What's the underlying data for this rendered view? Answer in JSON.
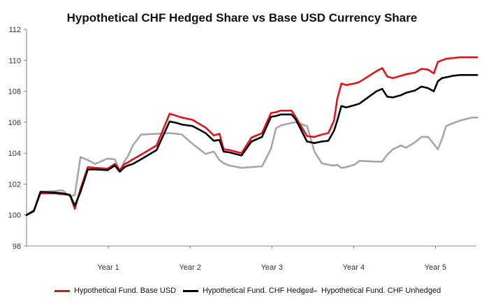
{
  "chart_data": {
    "type": "line",
    "title": "Hypothetical CHF Hedged Share vs Base USD Currency Share",
    "xlabel": "",
    "ylabel": "",
    "xlim": [
      0,
      5.5
    ],
    "ylim": [
      98,
      112
    ],
    "yticks": [
      98,
      100,
      102,
      104,
      106,
      108,
      110,
      112
    ],
    "xtick_labels": [
      {
        "x": 1,
        "label": "Year 1"
      },
      {
        "x": 2,
        "label": "Year 2"
      },
      {
        "x": 3,
        "label": "Year 3"
      },
      {
        "x": 4,
        "label": "Year 4"
      },
      {
        "x": 5,
        "label": "Year 5"
      }
    ],
    "grid": false,
    "legend_position": "bottom",
    "series": [
      {
        "name": "Hypothetical Fund. Base USD",
        "color": "#e3121a",
        "x": [
          0,
          0.09,
          0.17,
          0.34,
          0.44,
          0.53,
          0.59,
          0.66,
          0.75,
          0.84,
          0.99,
          1.08,
          1.14,
          1.2,
          1.24,
          1.3,
          1.4,
          1.59,
          1.75,
          1.84,
          1.9,
          2.03,
          2.19,
          2.29,
          2.36,
          2.41,
          2.48,
          2.63,
          2.75,
          2.88,
          2.99,
          3.05,
          3.11,
          3.24,
          3.29,
          3.43,
          3.52,
          3.61,
          3.69,
          3.76,
          3.8,
          3.85,
          3.91,
          4.01,
          4.07,
          4.28,
          4.35,
          4.41,
          4.48,
          4.58,
          4.64,
          4.75,
          4.83,
          4.91,
          4.98,
          5.03,
          5.08,
          5.13,
          5.22,
          5.3,
          5.37,
          5.45,
          5.51
        ],
        "y": [
          100.0,
          100.3,
          101.4,
          101.4,
          101.35,
          101.3,
          100.4,
          101.7,
          103.1,
          103.05,
          103.0,
          103.3,
          102.9,
          103.3,
          103.4,
          103.6,
          103.9,
          104.5,
          106.55,
          106.4,
          106.3,
          106.15,
          105.65,
          105.15,
          105.25,
          104.25,
          104.2,
          104.0,
          105.0,
          105.3,
          106.6,
          106.65,
          106.75,
          106.75,
          106.35,
          105.1,
          105.05,
          105.2,
          105.3,
          106.1,
          107.5,
          108.5,
          108.4,
          108.5,
          108.6,
          109.3,
          109.5,
          108.95,
          108.85,
          109.0,
          109.1,
          109.2,
          109.45,
          109.4,
          109.15,
          109.9,
          110.0,
          110.1,
          110.15,
          110.2,
          110.2,
          110.2,
          110.2
        ]
      },
      {
        "name": "Hypothetical Fund. CHF Hedged",
        "color": "#000000",
        "x": [
          0,
          0.09,
          0.17,
          0.34,
          0.44,
          0.53,
          0.59,
          0.66,
          0.75,
          0.84,
          0.99,
          1.08,
          1.14,
          1.2,
          1.24,
          1.3,
          1.4,
          1.59,
          1.75,
          1.84,
          1.9,
          2.03,
          2.19,
          2.29,
          2.36,
          2.41,
          2.48,
          2.63,
          2.75,
          2.88,
          2.99,
          3.05,
          3.11,
          3.24,
          3.29,
          3.43,
          3.52,
          3.61,
          3.69,
          3.76,
          3.8,
          3.85,
          3.91,
          4.01,
          4.07,
          4.28,
          4.35,
          4.41,
          4.48,
          4.58,
          4.64,
          4.75,
          4.83,
          4.91,
          4.98,
          5.03,
          5.08,
          5.13,
          5.22,
          5.3,
          5.37,
          5.45,
          5.51
        ],
        "y": [
          100.0,
          100.25,
          101.5,
          101.45,
          101.4,
          101.3,
          100.6,
          101.5,
          102.95,
          102.95,
          102.9,
          103.2,
          102.8,
          103.1,
          103.2,
          103.3,
          103.6,
          104.2,
          106.05,
          105.95,
          105.85,
          105.75,
          105.3,
          104.8,
          104.85,
          104.1,
          104.05,
          103.85,
          104.75,
          105.05,
          106.35,
          106.4,
          106.5,
          106.5,
          106.2,
          104.75,
          104.65,
          104.75,
          104.8,
          105.45,
          106.1,
          107.05,
          106.95,
          107.1,
          107.2,
          108.0,
          108.15,
          107.65,
          107.6,
          107.75,
          107.9,
          108.05,
          108.3,
          108.2,
          108.0,
          108.65,
          108.85,
          108.9,
          109.0,
          109.05,
          109.05,
          109.05,
          109.05
        ]
      },
      {
        "name": "Hypothetical Fund. CHF Unhedged",
        "color": "#a6a6a6",
        "x": [
          0,
          0.09,
          0.17,
          0.34,
          0.44,
          0.53,
          0.59,
          0.66,
          0.75,
          0.84,
          0.99,
          1.08,
          1.14,
          1.2,
          1.24,
          1.3,
          1.4,
          1.59,
          1.75,
          1.84,
          1.9,
          2.03,
          2.19,
          2.29,
          2.36,
          2.41,
          2.48,
          2.63,
          2.75,
          2.88,
          2.99,
          3.05,
          3.11,
          3.24,
          3.29,
          3.43,
          3.52,
          3.61,
          3.69,
          3.76,
          3.8,
          3.85,
          3.91,
          4.01,
          4.07,
          4.28,
          4.35,
          4.41,
          4.48,
          4.58,
          4.64,
          4.75,
          4.83,
          4.91,
          4.98,
          5.03,
          5.08,
          5.13,
          5.22,
          5.3,
          5.37,
          5.45,
          5.51
        ],
        "y": [
          100.0,
          100.3,
          101.5,
          101.55,
          101.6,
          101.2,
          101.3,
          103.75,
          103.55,
          103.3,
          103.65,
          103.6,
          102.85,
          103.5,
          103.8,
          104.5,
          105.2,
          105.25,
          105.3,
          105.25,
          105.2,
          104.6,
          103.95,
          104.1,
          103.55,
          103.35,
          103.2,
          103.05,
          103.1,
          103.15,
          104.3,
          105.6,
          105.8,
          105.95,
          106.0,
          105.75,
          104.1,
          103.35,
          103.25,
          103.2,
          103.25,
          103.05,
          103.1,
          103.25,
          103.5,
          103.45,
          103.45,
          103.9,
          104.25,
          104.5,
          104.35,
          104.7,
          105.05,
          105.05,
          104.6,
          104.25,
          104.9,
          105.75,
          105.95,
          106.1,
          106.2,
          106.3,
          106.3
        ]
      }
    ]
  }
}
